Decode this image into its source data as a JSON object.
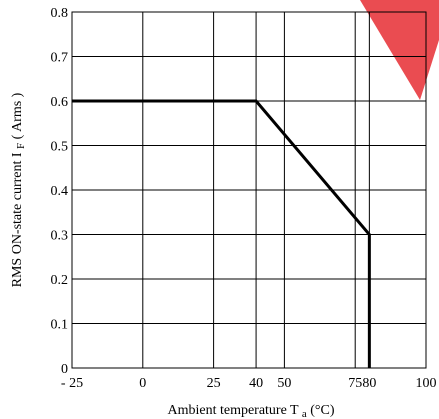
{
  "colors": {
    "line": "#000000",
    "grid": "#000000",
    "accent_shape": "#e8393e"
  },
  "chart_data": {
    "type": "line",
    "title": "",
    "xlabel_main": "Ambient temperature T",
    "xlabel_sub": "a",
    "xlabel_unit": "(°C)",
    "ylabel_main": "RMS ON-state current I",
    "ylabel_sub": "F",
    "ylabel_unit": "( Arms )",
    "xlim": [
      -25,
      100
    ],
    "ylim": [
      0,
      0.8
    ],
    "x_tick_values": [
      -25,
      0,
      25,
      40,
      50,
      75,
      80,
      100
    ],
    "x_tick_labels": [
      "- 25",
      "0",
      "25",
      "40",
      "50",
      "75",
      "80",
      "100"
    ],
    "y_tick_values": [
      0,
      0.1,
      0.2,
      0.3,
      0.4,
      0.5,
      0.6,
      0.7,
      0.8
    ],
    "y_tick_labels": [
      "0",
      "0.1",
      "0.2",
      "0.3",
      "0.4",
      "0.5",
      "0.6",
      "0.7",
      "0.8"
    ],
    "grid": true,
    "series": [
      {
        "x": [
          -25,
          40,
          80,
          80
        ],
        "y": [
          0.6,
          0.6,
          0.3,
          0
        ]
      }
    ]
  }
}
